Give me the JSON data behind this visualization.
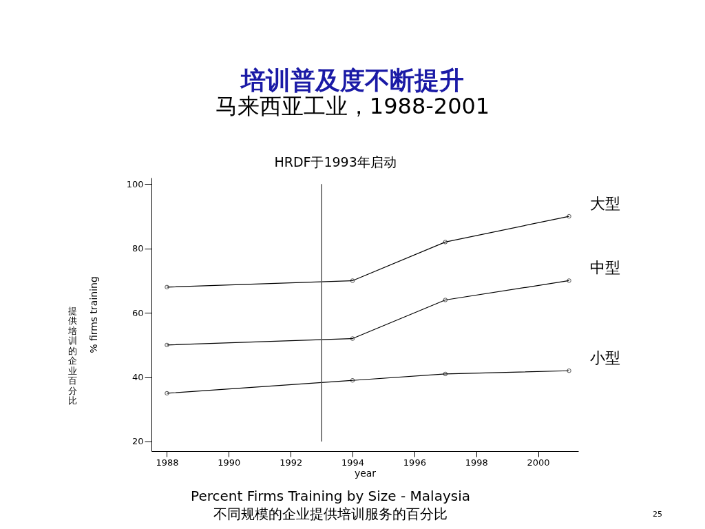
{
  "chart_data": {
    "type": "line",
    "title": "培训普及度不断提升",
    "subtitle": "马来西亚工业，1988-2001",
    "xlabel": "year",
    "ylabel": "% firms training",
    "x": [
      1988,
      1994,
      1997,
      2001
    ],
    "series": [
      {
        "name": "大型",
        "color": "#000000",
        "values": [
          68,
          70,
          82,
          90
        ]
      },
      {
        "name": "中型",
        "color": "#000000",
        "values": [
          50,
          52,
          64,
          70
        ]
      },
      {
        "name": "小型",
        "color": "#000000",
        "values": [
          35,
          39,
          41,
          42
        ]
      }
    ],
    "xlim": [
      1987.5,
      2001.3
    ],
    "xticks": [
      1988,
      1990,
      1992,
      1994,
      1996,
      1998,
      2000
    ],
    "ylim": [
      17,
      102
    ],
    "yticks": [
      20,
      40,
      60,
      80,
      100
    ],
    "ref_lines": [
      {
        "axis": "x",
        "value": 1993,
        "label": "HRDF于1993年启动",
        "color": "#555555"
      }
    ],
    "annotations": [
      "提供培训的企业百分比",
      "Percent Firms Training by Size - Malaysia",
      "不同规模的企业提供培训服务的百分比",
      "25"
    ],
    "grid": false,
    "marker": "circle",
    "line_style": "solid"
  }
}
